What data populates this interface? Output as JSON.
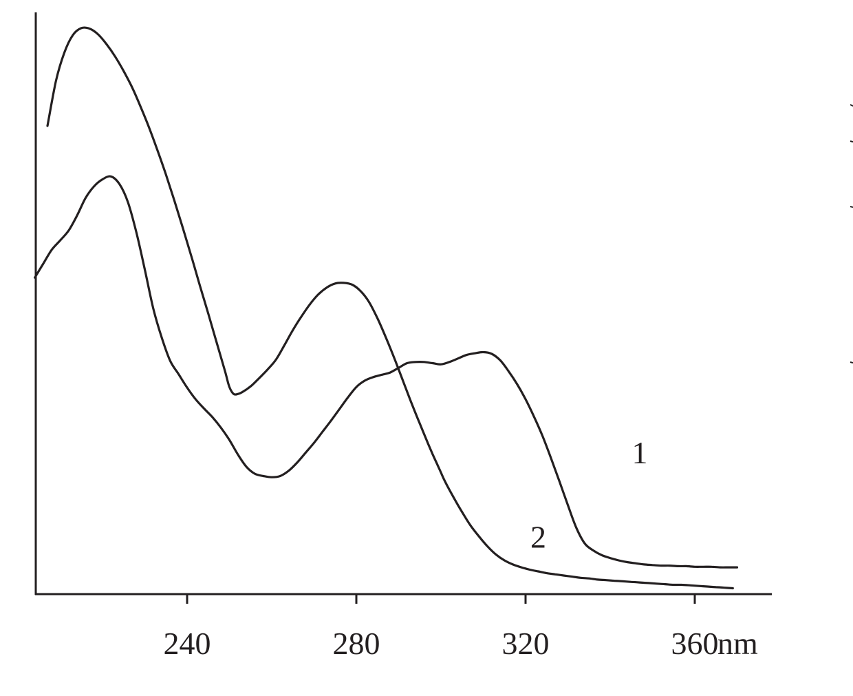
{
  "chart_data": {
    "type": "line",
    "title": "",
    "xlabel": "",
    "ylabel": "",
    "x_unit": "nm",
    "xlim": [
      204,
      380
    ],
    "ylim": [
      0,
      1.0
    ],
    "xticks": [
      240,
      280,
      320,
      360
    ],
    "tick_labels": [
      "240",
      "280",
      "320",
      "360"
    ],
    "grid": false,
    "series": [
      {
        "name": "1",
        "x": [
          207,
          209,
          211,
          213,
          215,
          217,
          219,
          221,
          223,
          225,
          227,
          229,
          231,
          233,
          235,
          237,
          239,
          241,
          243,
          245,
          247,
          249,
          250,
          251,
          252,
          253,
          255,
          257,
          259,
          261,
          263,
          265,
          267,
          269,
          271,
          273,
          275,
          277,
          279,
          281,
          283,
          285,
          287,
          289,
          291,
          293,
          295,
          297,
          298,
          299,
          300,
          301,
          303,
          305,
          307,
          309,
          311,
          313,
          315,
          317,
          319,
          321,
          323,
          325,
          327,
          329,
          331,
          333,
          335,
          337,
          339,
          341,
          343,
          345,
          347,
          349,
          351,
          353,
          355,
          357,
          359,
          361,
          363,
          365,
          367,
          369
        ],
        "y": [
          0.805,
          0.882,
          0.931,
          0.961,
          0.973,
          0.972,
          0.962,
          0.945,
          0.924,
          0.899,
          0.871,
          0.838,
          0.802,
          0.763,
          0.721,
          0.676,
          0.629,
          0.581,
          0.531,
          0.482,
          0.432,
          0.382,
          0.356,
          0.344,
          0.344,
          0.347,
          0.357,
          0.371,
          0.386,
          0.403,
          0.428,
          0.454,
          0.477,
          0.498,
          0.515,
          0.527,
          0.534,
          0.535,
          0.532,
          0.521,
          0.502,
          0.474,
          0.441,
          0.405,
          0.367,
          0.329,
          0.293,
          0.258,
          0.241,
          0.225,
          0.209,
          0.193,
          0.166,
          0.141,
          0.118,
          0.099,
          0.082,
          0.068,
          0.058,
          0.051,
          0.046,
          0.042,
          0.039,
          0.036,
          0.034,
          0.032,
          0.03,
          0.028,
          0.027,
          0.025,
          0.024,
          0.023,
          0.022,
          0.021,
          0.02,
          0.019,
          0.018,
          0.017,
          0.016,
          0.016,
          0.015,
          0.014,
          0.013,
          0.012,
          0.011,
          0.01
        ],
        "label_position": [
          347,
          0.225
        ]
      },
      {
        "name": "2",
        "x": [
          204,
          206,
          208,
          210,
          212,
          214,
          216,
          218,
          220,
          222,
          224,
          226,
          228,
          230,
          232,
          234,
          236,
          238,
          240,
          242,
          244,
          246,
          248,
          250,
          252,
          254,
          256,
          258,
          260,
          262,
          264,
          266,
          268,
          270,
          272,
          274,
          276,
          278,
          280,
          282,
          284,
          286,
          288,
          290,
          292,
          294,
          296,
          298,
          300,
          302,
          304,
          306,
          308,
          310,
          312,
          314,
          316,
          318,
          320,
          322,
          324,
          326,
          328,
          330,
          332,
          334,
          336,
          338,
          340,
          342,
          344,
          346,
          348,
          350,
          352,
          354,
          356,
          358,
          360,
          362,
          364,
          366,
          368,
          370
        ],
        "y": [
          0.544,
          0.568,
          0.592,
          0.608,
          0.625,
          0.651,
          0.681,
          0.701,
          0.713,
          0.718,
          0.705,
          0.674,
          0.622,
          0.558,
          0.491,
          0.441,
          0.401,
          0.378,
          0.355,
          0.335,
          0.319,
          0.304,
          0.286,
          0.265,
          0.24,
          0.219,
          0.207,
          0.203,
          0.201,
          0.203,
          0.212,
          0.226,
          0.243,
          0.26,
          0.279,
          0.298,
          0.318,
          0.338,
          0.356,
          0.367,
          0.373,
          0.377,
          0.381,
          0.389,
          0.397,
          0.399,
          0.399,
          0.397,
          0.395,
          0.399,
          0.405,
          0.411,
          0.414,
          0.416,
          0.413,
          0.402,
          0.383,
          0.361,
          0.335,
          0.305,
          0.272,
          0.234,
          0.194,
          0.153,
          0.114,
          0.087,
          0.075,
          0.067,
          0.062,
          0.058,
          0.055,
          0.053,
          0.051,
          0.05,
          0.049,
          0.049,
          0.048,
          0.048,
          0.047,
          0.047,
          0.047,
          0.046,
          0.046,
          0.046
        ],
        "label_position": [
          323,
          0.08
        ]
      }
    ]
  }
}
